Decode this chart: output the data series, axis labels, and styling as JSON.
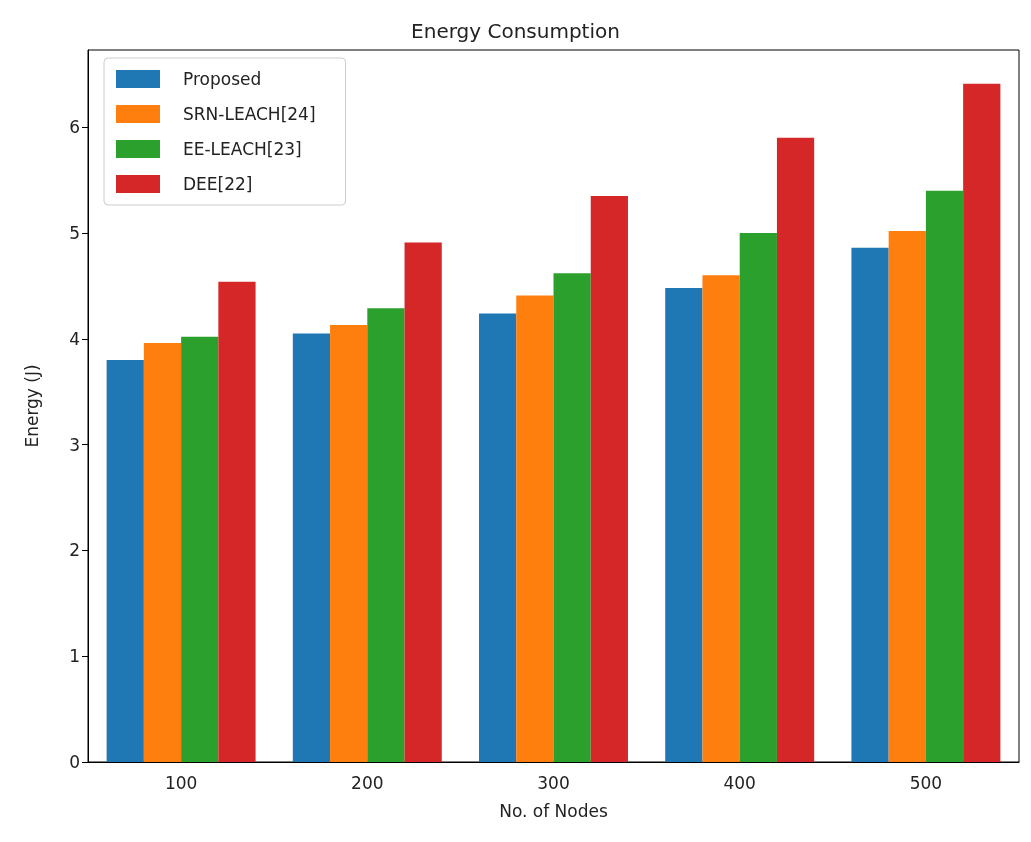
{
  "chart_data": {
    "type": "bar",
    "title": "Energy Consumption",
    "xlabel": "No. of Nodes",
    "ylabel": "Energy (J)",
    "categories": [
      "100",
      "200",
      "300",
      "400",
      "500"
    ],
    "series": [
      {
        "name": "Proposed",
        "color": "#1f77b4",
        "values": [
          3.8,
          4.05,
          4.24,
          4.48,
          4.86
        ]
      },
      {
        "name": "SRN-LEACH[24]",
        "color": "#ff7f0e",
        "values": [
          3.96,
          4.13,
          4.41,
          4.6,
          5.02
        ]
      },
      {
        "name": "EE-LEACH[23]",
        "color": "#2ca02c",
        "values": [
          4.02,
          4.29,
          4.62,
          5.0,
          5.4
        ]
      },
      {
        "name": "DEE[22]",
        "color": "#d62728",
        "values": [
          4.54,
          4.91,
          5.35,
          5.9,
          6.41
        ]
      }
    ],
    "ylim": [
      0,
      6.73
    ],
    "yticks": [
      0,
      1,
      2,
      3,
      4,
      5,
      6
    ],
    "grid": false,
    "legend": "top left"
  }
}
